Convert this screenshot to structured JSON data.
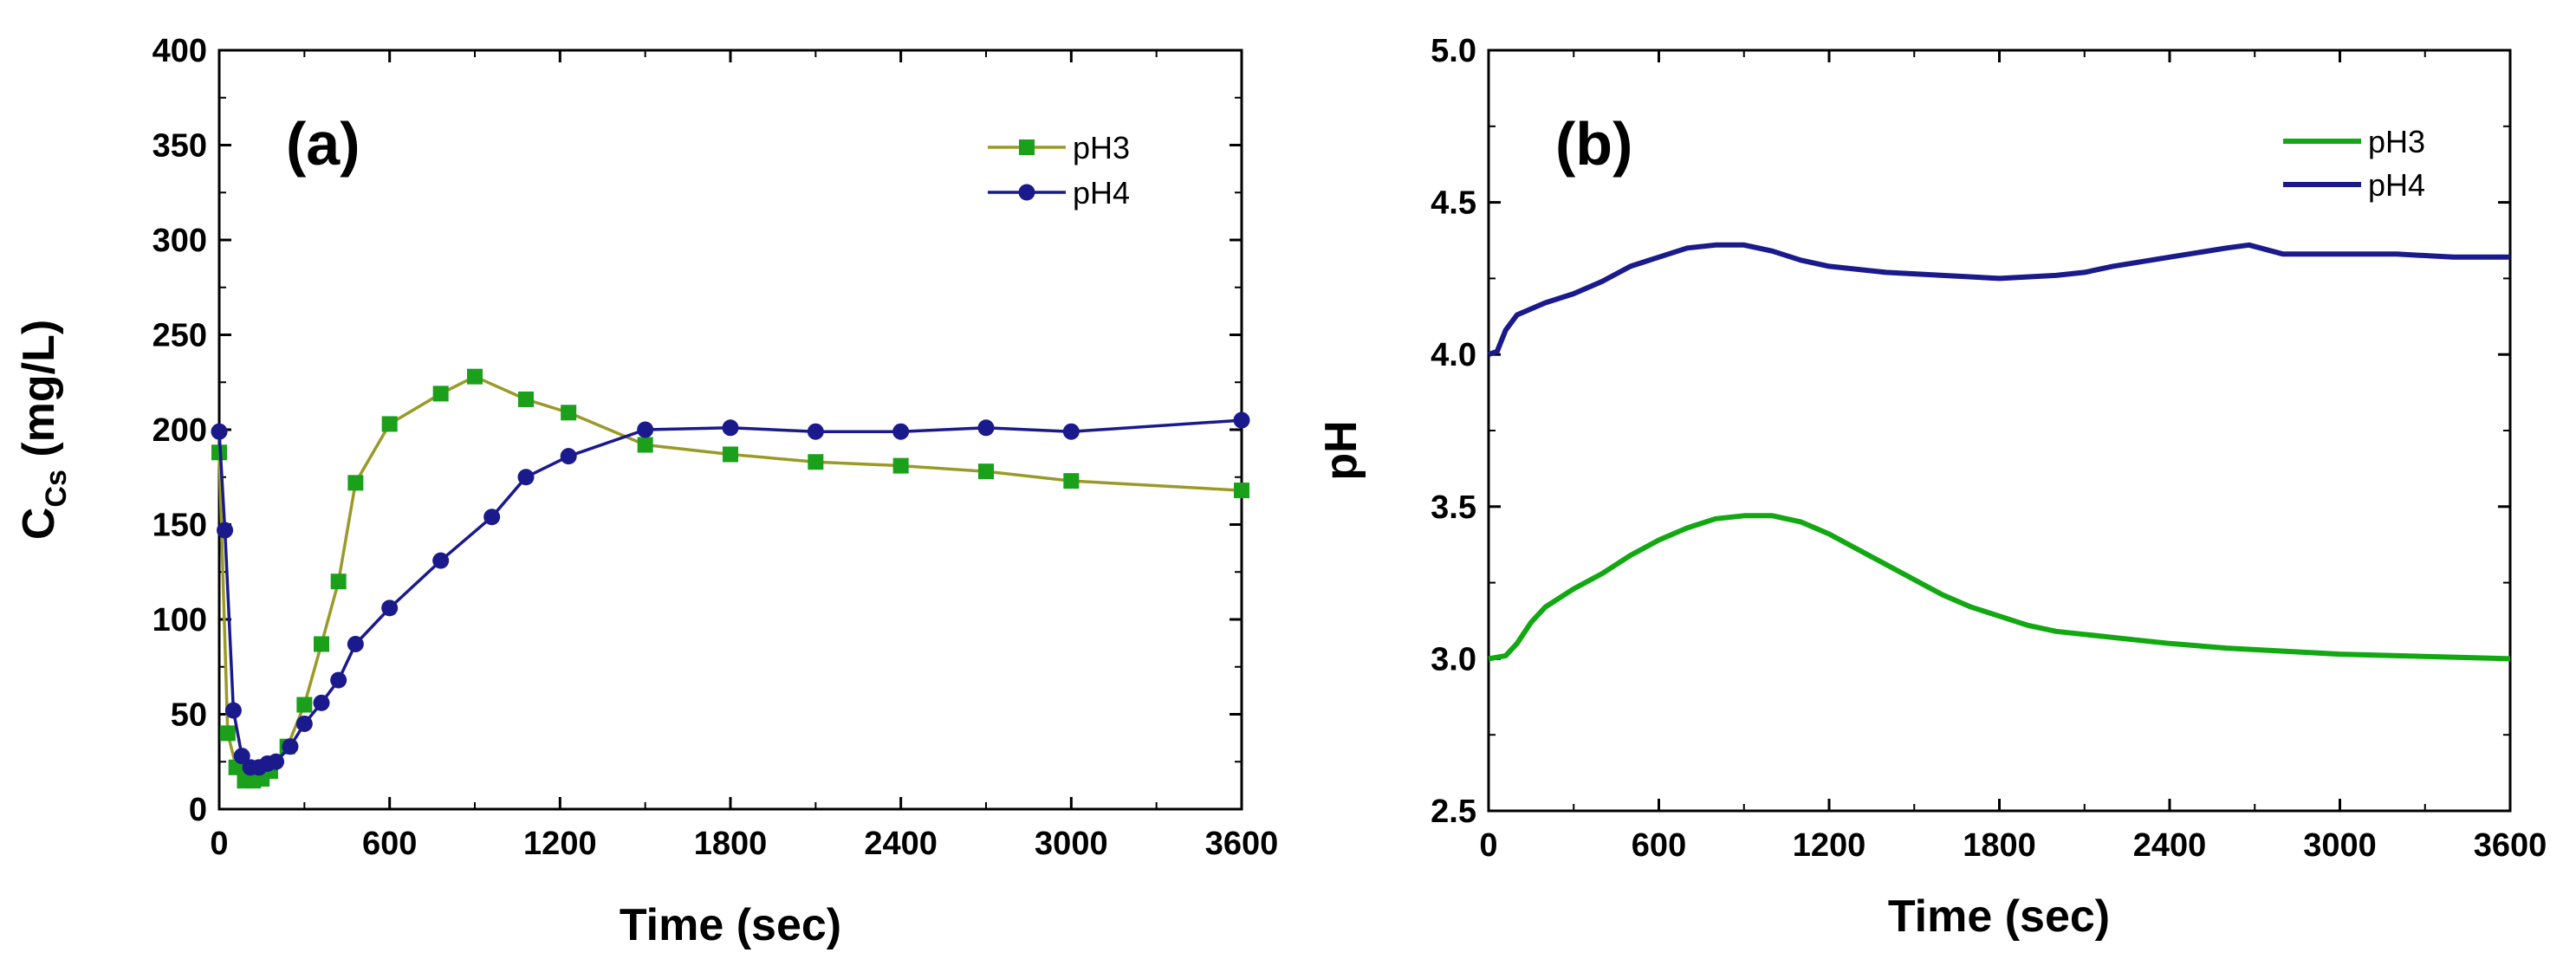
{
  "colors": {
    "pH3_a": "#9a9a28",
    "pH3_a_marker": "#1aa01a",
    "pH4": "#1a1a8c",
    "pH3_b": "#11a811"
  },
  "chart_data": [
    {
      "id": "a",
      "type": "line",
      "panel_label": "(a)",
      "xlabel": "Time (sec)",
      "ylabel": "C",
      "ylabel_sub": "Cs",
      "ylabel_suffix": " (mg/L)",
      "xlim": [
        0,
        3600
      ],
      "ylim": [
        0,
        400
      ],
      "xticks": [
        "0",
        "600",
        "1200",
        "1800",
        "2400",
        "3000",
        "3600"
      ],
      "yticks": [
        "0",
        "50",
        "100",
        "150",
        "200",
        "250",
        "300",
        "350",
        "400"
      ],
      "legend_position": "top-right",
      "series": [
        {
          "name": "pH3",
          "marker": "square",
          "x": [
            0,
            30,
            60,
            90,
            120,
            150,
            180,
            240,
            300,
            360,
            420,
            480,
            600,
            780,
            900,
            1080,
            1230,
            1500,
            1800,
            2100,
            2400,
            2700,
            3000,
            3600
          ],
          "values": [
            188,
            40,
            22,
            15,
            15,
            16,
            20,
            33,
            55,
            87,
            120,
            172,
            203,
            219,
            228,
            216,
            209,
            192,
            187,
            183,
            181,
            178,
            173,
            168
          ]
        },
        {
          "name": "pH4",
          "marker": "circle",
          "x": [
            0,
            20,
            50,
            80,
            110,
            140,
            170,
            200,
            250,
            300,
            360,
            420,
            480,
            600,
            780,
            960,
            1080,
            1230,
            1500,
            1800,
            2100,
            2400,
            2700,
            3000,
            3600
          ],
          "values": [
            199,
            147,
            52,
            28,
            22,
            22,
            24,
            25,
            33,
            45,
            56,
            68,
            87,
            106,
            131,
            154,
            175,
            186,
            200,
            201,
            199,
            199,
            201,
            199,
            205
          ]
        }
      ]
    },
    {
      "id": "b",
      "type": "line",
      "panel_label": "(b)",
      "xlabel": "Time (sec)",
      "ylabel": "pH",
      "xlim": [
        0,
        3600
      ],
      "ylim": [
        2.5,
        5.0
      ],
      "xticks": [
        "0",
        "600",
        "1200",
        "1800",
        "2400",
        "3000",
        "3600"
      ],
      "yticks": [
        "2.5",
        "3.0",
        "3.5",
        "4.0",
        "4.5",
        "5.0"
      ],
      "legend_position": "top-right",
      "series": [
        {
          "name": "pH3",
          "marker": "none",
          "x": [
            0,
            60,
            100,
            150,
            200,
            300,
            400,
            500,
            600,
            700,
            800,
            900,
            1000,
            1100,
            1200,
            1300,
            1400,
            1500,
            1600,
            1700,
            1800,
            1900,
            2000,
            2100,
            2200,
            2400,
            2600,
            2800,
            3000,
            3200,
            3400,
            3600
          ],
          "values": [
            3.0,
            3.01,
            3.05,
            3.12,
            3.17,
            3.23,
            3.28,
            3.34,
            3.39,
            3.43,
            3.46,
            3.47,
            3.47,
            3.45,
            3.41,
            3.36,
            3.31,
            3.26,
            3.21,
            3.17,
            3.14,
            3.11,
            3.09,
            3.08,
            3.07,
            3.05,
            3.035,
            3.025,
            3.015,
            3.01,
            3.005,
            3.0
          ]
        },
        {
          "name": "pH4",
          "marker": "none",
          "x": [
            0,
            30,
            60,
            100,
            150,
            200,
            300,
            400,
            500,
            600,
            700,
            800,
            900,
            1000,
            1100,
            1200,
            1400,
            1600,
            1800,
            2000,
            2100,
            2200,
            2400,
            2600,
            2680,
            2800,
            3000,
            3200,
            3400,
            3600
          ],
          "values": [
            4.0,
            4.01,
            4.08,
            4.13,
            4.15,
            4.17,
            4.2,
            4.24,
            4.29,
            4.32,
            4.35,
            4.36,
            4.36,
            4.34,
            4.31,
            4.29,
            4.27,
            4.26,
            4.25,
            4.26,
            4.27,
            4.29,
            4.32,
            4.35,
            4.36,
            4.33,
            4.33,
            4.33,
            4.32,
            4.32
          ]
        }
      ]
    }
  ]
}
